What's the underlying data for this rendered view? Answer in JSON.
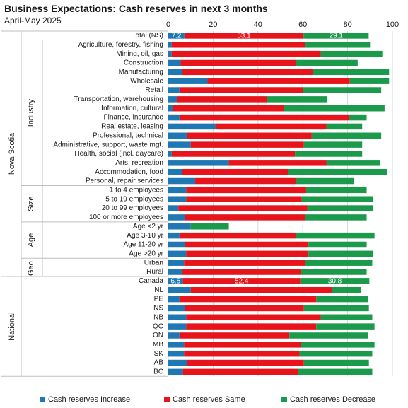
{
  "title": "Business Expectations: Cash reserves in next 3 months",
  "subtitle": "April-May 2025",
  "chart_data": {
    "type": "bar",
    "orientation": "horizontal",
    "stacked": true,
    "xlim": [
      0,
      100
    ],
    "x_ticks": [
      "0",
      "20",
      "40",
      "60",
      "80",
      "100"
    ],
    "grid": true,
    "legend_position": "bottom",
    "categories": [
      "Total (NS)",
      "Agriculture, forestry, fishing",
      "Mining, oil, gas",
      "Construction",
      "Manufacturing",
      "Wholesale",
      "Retail",
      "Transportation, warehousing",
      "Information, cultural",
      "Finance, insurance",
      "Real estate, leasing",
      "Professional, technical",
      "Administrative, support, waste mgt.",
      "Health, social (incl. daycare)",
      "Arts, recreation",
      "Accommodation, food",
      "Personal, repair services",
      "1 to 4 employees",
      "5 to 19 employees",
      "20 to 99 employees",
      "100 or more employees",
      "Age <2 yr",
      "Age 3-10 yr",
      "Age 11-20 yr",
      "Age >20 yr",
      "Urban",
      "Rural",
      "Canada",
      "NL",
      "PE",
      "NS",
      "NB",
      "QC",
      "ON",
      "MB",
      "SK",
      "AB",
      "BC"
    ],
    "groups": [
      {
        "label": "Nova Scotia",
        "level": 1,
        "from": 0,
        "to": 26
      },
      {
        "label": "Industry",
        "level": 2,
        "from": 1,
        "to": 16
      },
      {
        "label": "Size",
        "level": 2,
        "from": 17,
        "to": 20
      },
      {
        "label": "Age",
        "level": 2,
        "from": 21,
        "to": 24
      },
      {
        "label": "Geo.",
        "level": 2,
        "from": 25,
        "to": 26
      },
      {
        "label": "National",
        "level": 1,
        "from": 27,
        "to": 37
      }
    ],
    "series": [
      {
        "name": "Cash reserves Increase",
        "color": "#1f77b4",
        "values": [
          7.2,
          1.5,
          1.5,
          5.5,
          6,
          17.5,
          5,
          4,
          2,
          5,
          21,
          8.5,
          10,
          1.5,
          27,
          6,
          12,
          8,
          8,
          4.5,
          7.5,
          10,
          5,
          7.5,
          8,
          7,
          6,
          6.5,
          10,
          5,
          7.5,
          8,
          8,
          5,
          7,
          7,
          8.5,
          6.5
        ]
      },
      {
        "name": "Cash reserves Same",
        "color": "#e8141b",
        "values": [
          53.1,
          59.5,
          66.5,
          51.5,
          58.5,
          63.5,
          55,
          40,
          49.5,
          75.5,
          49.5,
          55.5,
          50.5,
          55,
          43.5,
          47.5,
          45,
          53.5,
          51.5,
          57.5,
          53.5,
          0,
          52,
          55,
          54.5,
          54,
          53,
          52.4,
          63,
          61,
          53,
          60,
          58,
          49,
          52,
          51.5,
          52,
          51.5
        ]
      },
      {
        "name": "Cash reserves Decrease",
        "color": "#1b9a4b",
        "values": [
          29.1,
          29,
          27.5,
          27.5,
          34,
          17.5,
          35,
          27,
          45,
          8,
          16,
          31,
          26,
          30,
          24,
          44,
          26,
          27,
          32,
          29.5,
          27.5,
          17,
          35,
          26,
          29,
          30,
          29.5,
          30.8,
          13,
          23,
          29,
          23,
          26,
          35,
          33,
          32.5,
          29,
          33
        ]
      }
    ],
    "data_labels": [
      {
        "category": "Total (NS)",
        "values": [
          "7.2",
          "53.1",
          "29.1"
        ]
      },
      {
        "category": "Canada",
        "values": [
          "6.5",
          "52.4",
          "30.8"
        ]
      }
    ]
  }
}
